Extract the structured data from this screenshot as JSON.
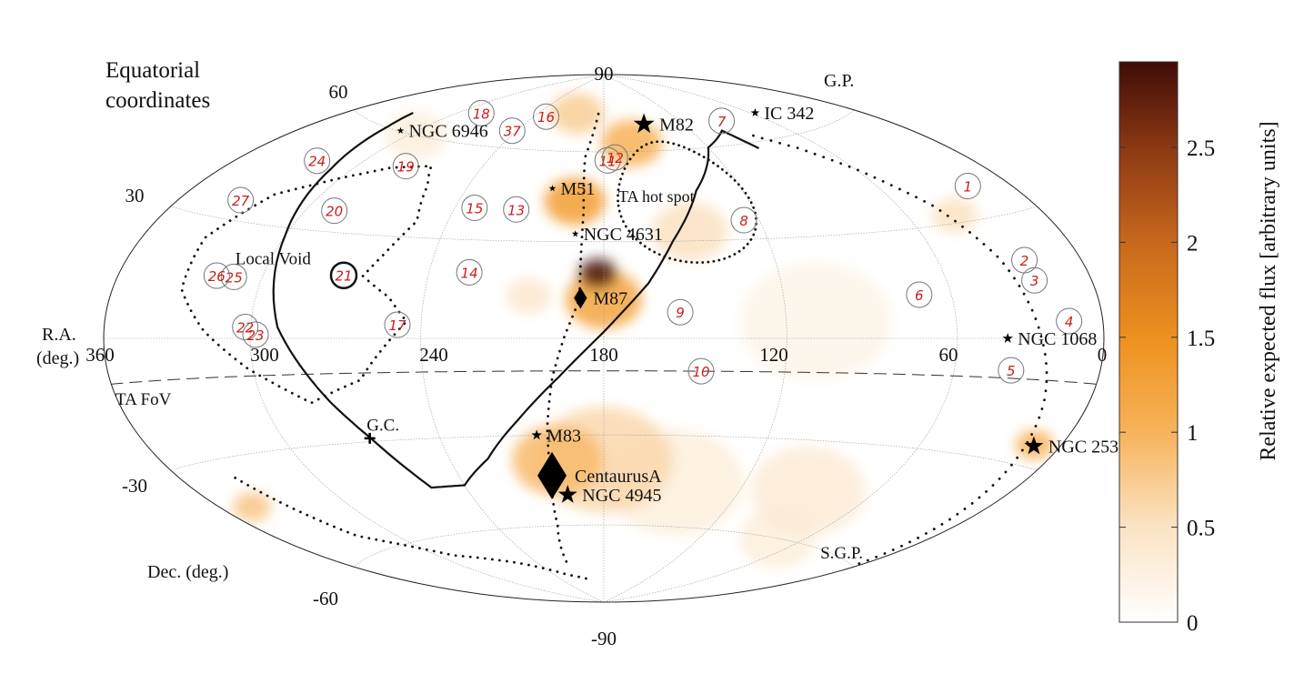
{
  "chart_data": {
    "type": "heatmap",
    "projection": "Hammer-Aitoff equatorial sky map",
    "title_lines": [
      "Equatorial",
      "coordinates"
    ],
    "xlabel_lines": [
      "R.A.",
      "(deg.)"
    ],
    "ylabel": "Dec. (deg.)",
    "ra_ticks": [
      "360",
      "300",
      "240",
      "180",
      "120",
      "60",
      "0"
    ],
    "dec_ticks": [
      "90",
      "60",
      "30",
      "-30",
      "-60",
      "-90"
    ],
    "colorbar": {
      "label": "Relative expected flux [arbitrary units]",
      "range": [
        0,
        2.95
      ],
      "ticks": [
        "0",
        "0.5",
        "1",
        "1.5",
        "2",
        "2.5"
      ],
      "colors": [
        "#ffffff",
        "#fbe3c4",
        "#f7b25a",
        "#ef921f",
        "#c96a1d",
        "#8f3a14",
        "#3e0d07"
      ]
    },
    "flux_blobs": [
      {
        "ra": 182,
        "dec": 20,
        "value": 2.9,
        "spread": 5
      },
      {
        "ra": 180,
        "dec": 12,
        "value": 1.2,
        "spread": 10
      },
      {
        "ra": 192,
        "dec": 43,
        "value": 1.3,
        "spread": 8
      },
      {
        "ra": 163,
        "dec": 63,
        "value": 1.0,
        "spread": 8
      },
      {
        "ra": 205,
        "dec": 74,
        "value": 0.7,
        "spread": 7
      },
      {
        "ra": 148,
        "dec": 33,
        "value": 0.5,
        "spread": 10
      },
      {
        "ra": 205,
        "dec": 13,
        "value": 0.4,
        "spread": 6
      },
      {
        "ra": 110,
        "dec": 5,
        "value": 0.2,
        "spread": 20
      },
      {
        "ra": 198,
        "dec": -38,
        "value": 0.9,
        "spread": 12
      },
      {
        "ra": 180,
        "dec": -38,
        "value": 0.6,
        "spread": 18
      },
      {
        "ra": 150,
        "dec": -45,
        "value": 0.3,
        "spread": 18
      },
      {
        "ra": 90,
        "dec": -45,
        "value": 0.35,
        "spread": 15
      },
      {
        "ra": 12,
        "dec": -25,
        "value": 1.0,
        "spread": 5
      },
      {
        "ra": 40,
        "dec": 32,
        "value": 0.5,
        "spread": 6
      },
      {
        "ra": 345,
        "dec": -42,
        "value": 0.8,
        "spread": 5
      },
      {
        "ra": 295,
        "dec": 60,
        "value": 0.3,
        "spread": 8
      },
      {
        "ra": 75,
        "dec": -60,
        "value": 0.3,
        "spread": 10
      }
    ],
    "galactic_plane": {
      "label": "G.P.",
      "points": [
        [
          93,
          58
        ],
        [
          100,
          65
        ],
        [
          120,
          60
        ],
        [
          140,
          46
        ],
        [
          155,
          30
        ],
        [
          165,
          17
        ],
        [
          180,
          2
        ],
        [
          195,
          -12
        ],
        [
          210,
          -25
        ],
        [
          225,
          -37
        ],
        [
          240,
          -45
        ],
        [
          255,
          -45
        ],
        [
          266,
          -29
        ],
        [
          275,
          -18
        ],
        [
          290,
          3
        ],
        [
          300,
          28
        ],
        [
          310,
          47
        ],
        [
          320,
          60
        ],
        [
          326,
          65
        ]
      ]
    },
    "supergalactic_plane": {
      "points": [
        [
          86,
          62
        ],
        [
          72,
          56
        ],
        [
          60,
          48
        ],
        [
          45,
          35
        ],
        [
          35,
          20
        ],
        [
          27,
          0
        ],
        [
          20,
          -15
        ],
        [
          12,
          -35
        ],
        [
          2,
          -60
        ]
      ]
    },
    "dotted_paths": [
      {
        "name": "centaurus-arc",
        "points": [
          [
            185,
            74
          ],
          [
            190,
            58
          ],
          [
            188,
            40
          ],
          [
            188,
            25
          ],
          [
            188,
            12
          ],
          [
            193,
            0
          ],
          [
            197,
            -12
          ],
          [
            200,
            -27
          ],
          [
            202,
            -44
          ],
          [
            206,
            -60
          ],
          [
            215,
            -75
          ]
        ]
      },
      {
        "name": "southern-arc",
        "points": [
          [
            335,
            -35
          ],
          [
            320,
            -55
          ],
          [
            290,
            -66
          ],
          [
            255,
            -72
          ],
          [
            225,
            -78
          ],
          [
            205,
            -80
          ]
        ]
      },
      {
        "name": "local-void-loop",
        "points": [
          [
            263,
            18
          ],
          [
            252,
            12
          ],
          [
            245,
            5
          ],
          [
            262,
            -12
          ],
          [
            282,
            -18
          ],
          [
            302,
            -8
          ],
          [
            318,
            2
          ],
          [
            330,
            12
          ],
          [
            332,
            25
          ],
          [
            320,
            38
          ],
          [
            300,
            45
          ],
          [
            283,
            50
          ],
          [
            265,
            52
          ],
          [
            258,
            46
          ],
          [
            252,
            35
          ],
          [
            258,
            25
          ],
          [
            263,
            18
          ]
        ]
      }
    ],
    "ta_fov_dec": -10,
    "ta_fov_label": "TA FoV",
    "hotspot": {
      "label": "TA hot spot",
      "center": [
        146.7,
        43.2
      ],
      "radius": 20
    },
    "markers": [
      {
        "label": "NGC 6946",
        "ra": 308.7,
        "dec": 60.2,
        "shape": "star",
        "size": 4
      },
      {
        "label": "IC 342",
        "ra": 56.7,
        "dec": 68.1,
        "shape": "star",
        "size": 5
      },
      {
        "label": "M82",
        "ra": 149,
        "dec": 69.7,
        "shape": "star",
        "size": 12
      },
      {
        "label": "M51",
        "ra": 202.5,
        "dec": 47.2,
        "shape": "star",
        "size": 4
      },
      {
        "label": "NGC 4631",
        "ra": 190.5,
        "dec": 32.5,
        "shape": "star",
        "size": 4
      },
      {
        "label": "M87",
        "ra": 187.7,
        "dec": 12.4,
        "shape": "diamond",
        "size": 9
      },
      {
        "label": "NGC 1068",
        "ra": 40.7,
        "dec": 0,
        "shape": "star",
        "size": 6
      },
      {
        "label": "G.C.",
        "ra": 266.4,
        "dec": -29,
        "shape": "cross",
        "size": 6
      },
      {
        "label": "M83",
        "ra": 204.3,
        "dec": -29.9,
        "shape": "star",
        "size": 6
      },
      {
        "label": "CentaurusA",
        "ra": 201.4,
        "dec": -43,
        "shape": "diamond",
        "size": 20
      },
      {
        "label": "NGC 4945",
        "ra": 196.4,
        "dec": -49.5,
        "shape": "star",
        "size": 11
      },
      {
        "label": "NGC 253",
        "ra": 11.9,
        "dec": -25.3,
        "shape": "star",
        "size": 11
      }
    ],
    "annotations": [
      {
        "text": "Local Void",
        "ra": 298,
        "dec": 20
      },
      {
        "text": "S.G.P.",
        "ra": 18,
        "dec": -60
      },
      {
        "text": "G.C.",
        "ra": 260,
        "dec": -27
      }
    ],
    "circled_marks": [
      {
        "text": "1",
        "ra": 20,
        "dec": 38
      },
      {
        "text": "2",
        "ra": 25,
        "dec": 19
      },
      {
        "text": "3",
        "ra": 25,
        "dec": 14
      },
      {
        "text": "4",
        "ra": 15,
        "dec": 4
      },
      {
        "text": "5",
        "ra": 38,
        "dec": -8
      },
      {
        "text": "6",
        "ra": 72,
        "dec": 12
      },
      {
        "text": "7",
        "ra": 90,
        "dec": 68
      },
      {
        "text": "8",
        "ra": 126,
        "dec": 36
      },
      {
        "text": "9",
        "ra": 155,
        "dec": 8
      },
      {
        "text": "10",
        "ra": 148,
        "dec": -10
      },
      {
        "text": "11",
        "ra": 178,
        "dec": 57
      },
      {
        "text": "12",
        "ra": 174,
        "dec": 58
      },
      {
        "text": "13",
        "ra": 215,
        "dec": 40
      },
      {
        "text": "14",
        "ra": 226,
        "dec": 20
      },
      {
        "text": "15",
        "ra": 232,
        "dec": 40
      },
      {
        "text": "16",
        "ra": 230,
        "dec": 72
      },
      {
        "text": "17",
        "ra": 248,
        "dec": 4
      },
      {
        "text": "18",
        "ra": 284,
        "dec": 70
      },
      {
        "text": "19",
        "ra": 277,
        "dec": 51
      },
      {
        "text": "20",
        "ra": 288,
        "dec": 36
      },
      {
        "text": "21",
        "ra": 270,
        "dec": 18
      },
      {
        "text": "22",
        "ra": 302,
        "dec": 3
      },
      {
        "text": "23",
        "ra": 298,
        "dec": 1
      },
      {
        "text": "24",
        "ra": 322,
        "dec": 48
      },
      {
        "text": "25",
        "ra": 311,
        "dec": 16
      },
      {
        "text": "26",
        "ra": 318,
        "dec": 16
      },
      {
        "text": "27",
        "ra": 332,
        "dec": 35
      },
      {
        "text": "37",
        "ra": 243,
        "dec": 66
      }
    ]
  }
}
